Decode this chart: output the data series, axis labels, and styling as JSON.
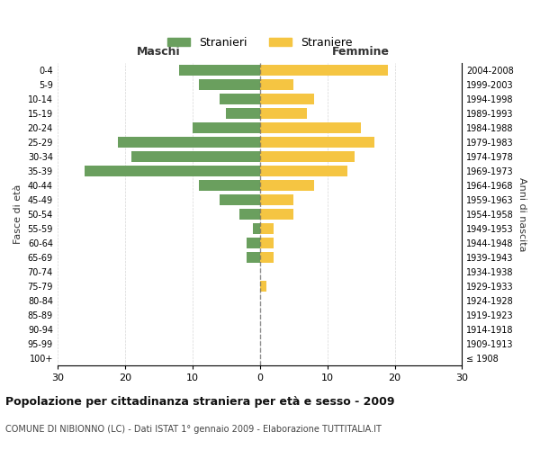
{
  "age_groups": [
    "100+",
    "95-99",
    "90-94",
    "85-89",
    "80-84",
    "75-79",
    "70-74",
    "65-69",
    "60-64",
    "55-59",
    "50-54",
    "45-49",
    "40-44",
    "35-39",
    "30-34",
    "25-29",
    "20-24",
    "15-19",
    "10-14",
    "5-9",
    "0-4"
  ],
  "birth_years": [
    "≤ 1908",
    "1909-1913",
    "1914-1918",
    "1919-1923",
    "1924-1928",
    "1929-1933",
    "1934-1938",
    "1939-1943",
    "1944-1948",
    "1949-1953",
    "1954-1958",
    "1959-1963",
    "1964-1968",
    "1969-1973",
    "1974-1978",
    "1979-1983",
    "1984-1988",
    "1989-1993",
    "1994-1998",
    "1999-2003",
    "2004-2008"
  ],
  "males": [
    0,
    0,
    0,
    0,
    0,
    0,
    0,
    2,
    2,
    1,
    3,
    6,
    9,
    26,
    19,
    21,
    10,
    5,
    6,
    9,
    12
  ],
  "females": [
    0,
    0,
    0,
    0,
    0,
    1,
    0,
    2,
    2,
    2,
    5,
    5,
    8,
    13,
    14,
    17,
    15,
    7,
    8,
    5,
    19
  ],
  "male_color": "#6a9f5e",
  "female_color": "#f5c542",
  "title": "Popolazione per cittadinanza straniera per età e sesso - 2009",
  "subtitle": "COMUNE DI NIBIONNO (LC) - Dati ISTAT 1° gennaio 2009 - Elaborazione TUTTITALIA.IT",
  "xlabel_left": "Maschi",
  "xlabel_right": "Femmine",
  "ylabel_left": "Fasce di età",
  "ylabel_right": "Anni di nascita",
  "xlim": 30,
  "legend_stranieri": "Stranieri",
  "legend_straniere": "Straniere",
  "background_color": "#ffffff",
  "grid_color": "#cccccc"
}
